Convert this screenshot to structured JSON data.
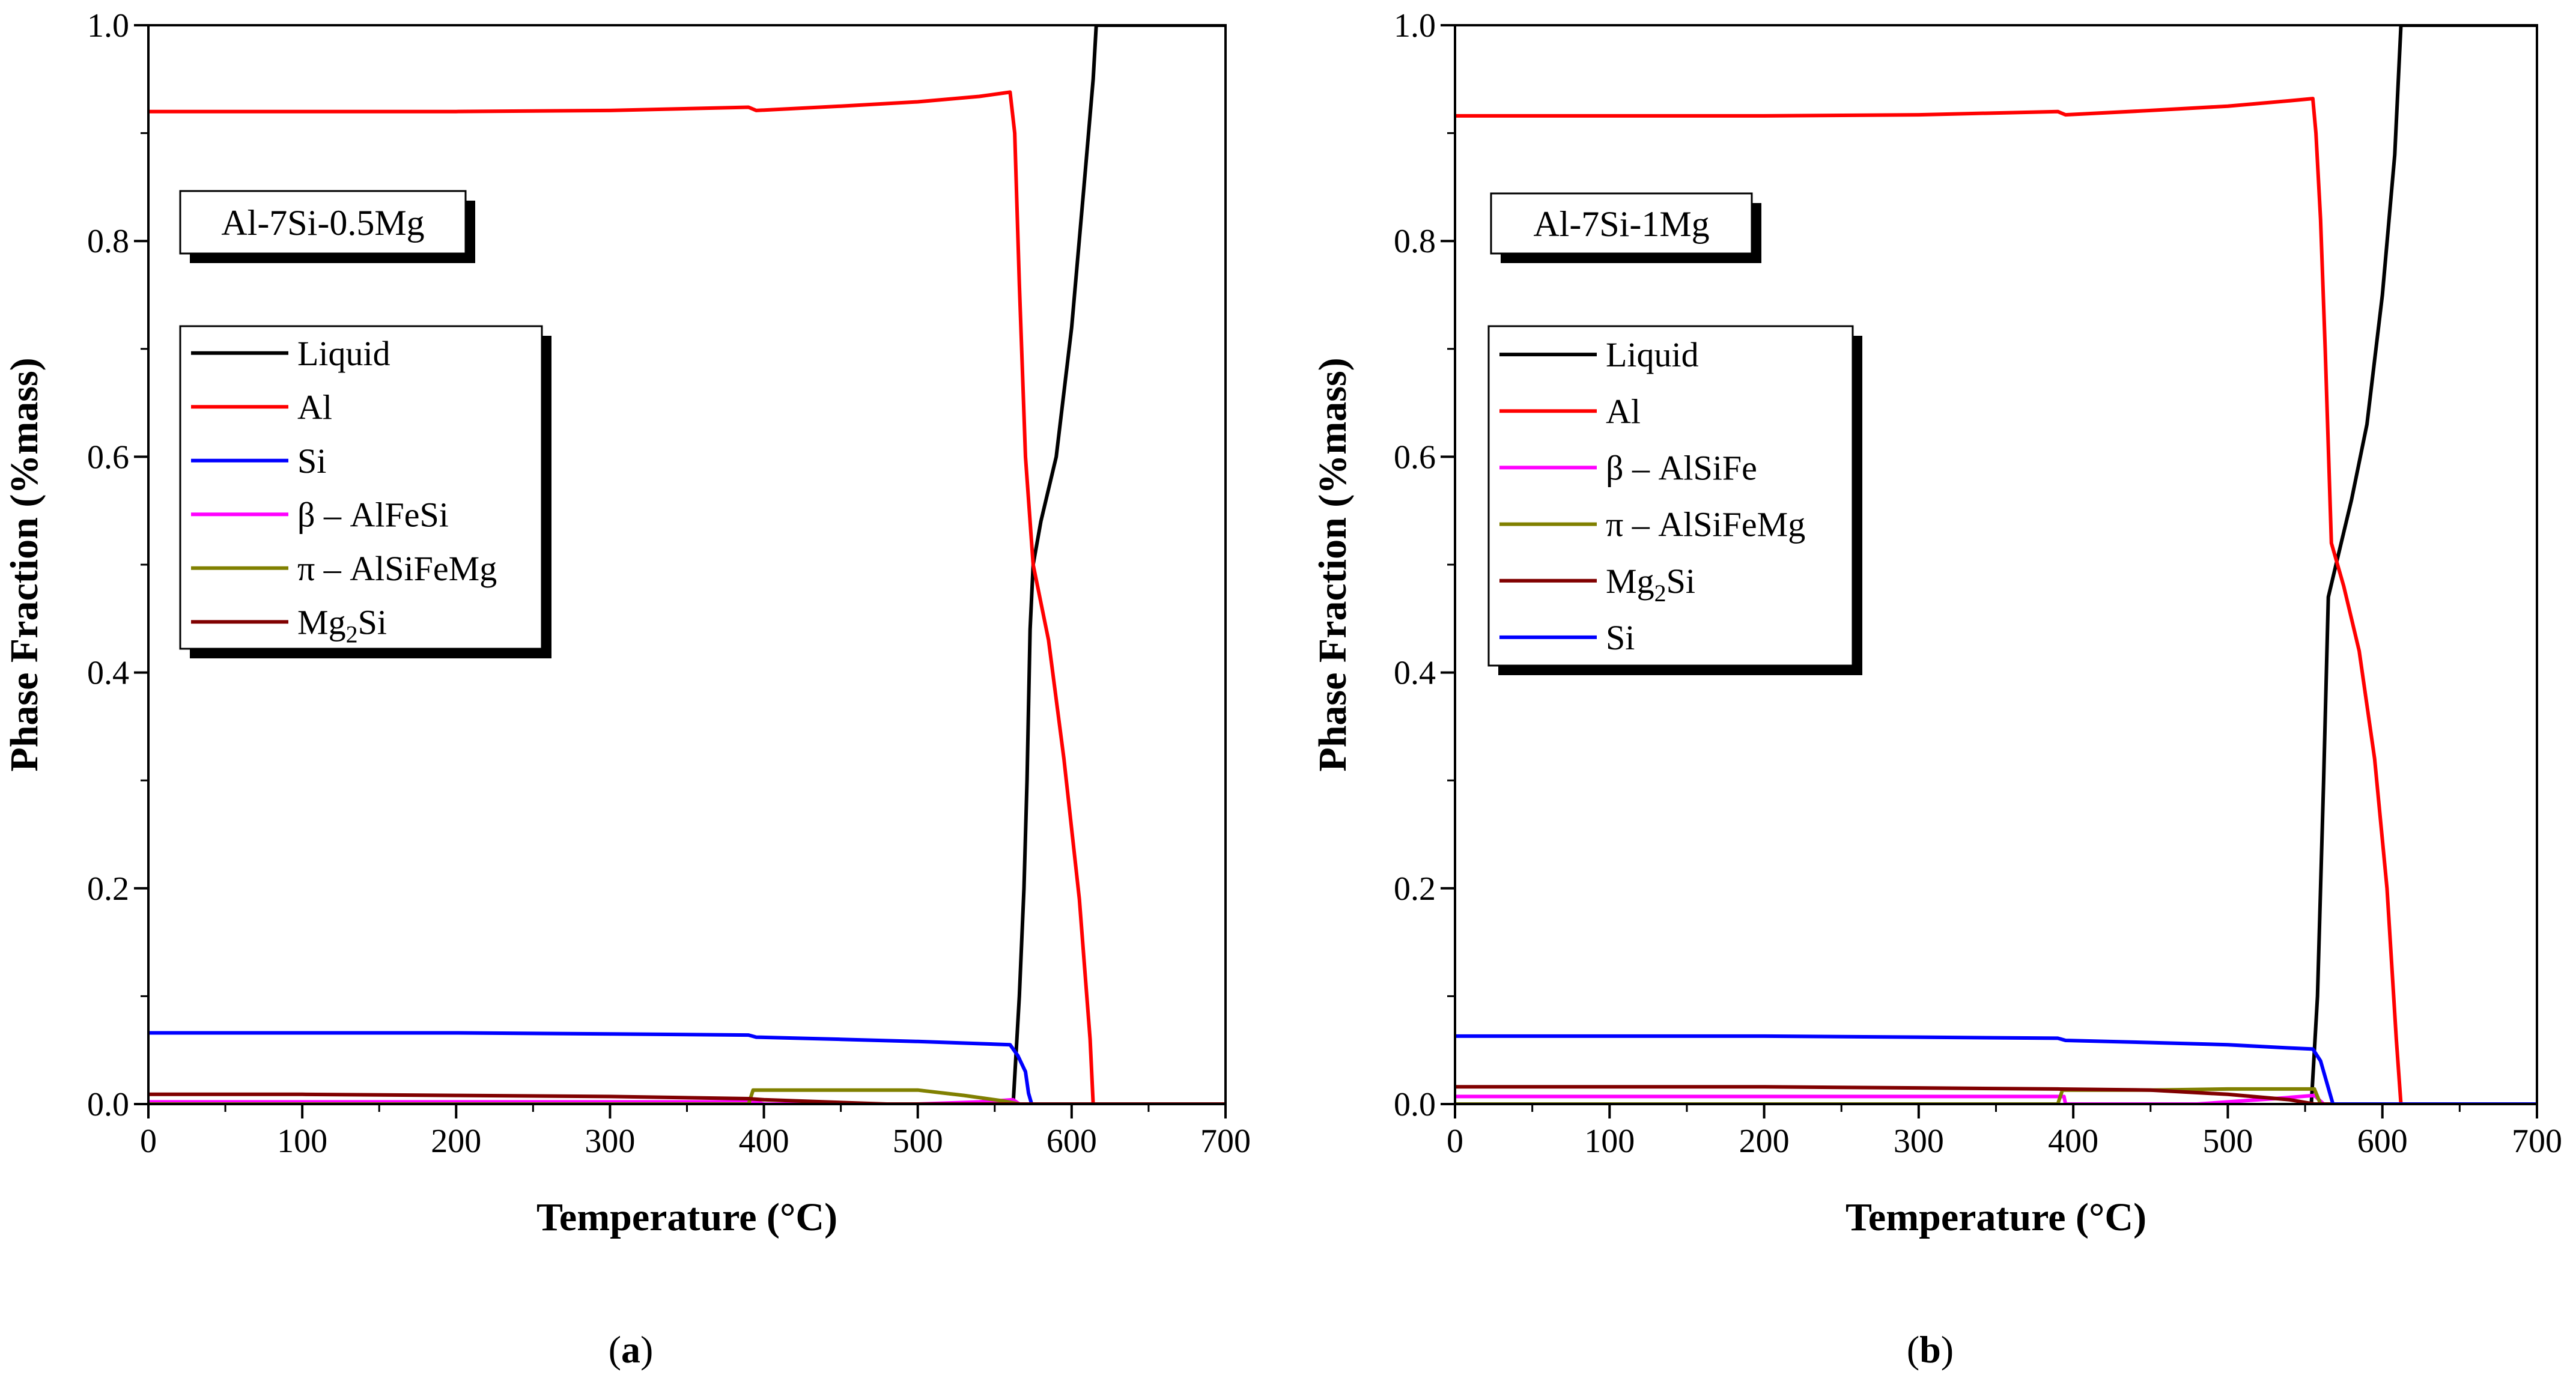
{
  "chart_data": [
    {
      "type": "line",
      "panel": "a",
      "caption": "a",
      "alloy_label": "Al-7Si-0.5Mg",
      "xlabel": "Temperature (°C)",
      "ylabel": "Phase Fraction (%mass)",
      "xlim": [
        0,
        700
      ],
      "ylim": [
        0,
        1.0
      ],
      "xticks": [
        0,
        100,
        200,
        300,
        400,
        500,
        600,
        700
      ],
      "xtick_labels": [
        "0",
        "100",
        "200",
        "300",
        "400",
        "500",
        "600",
        "700"
      ],
      "yticks": [
        0,
        0.2,
        0.4,
        0.6,
        0.8,
        1.0
      ],
      "ytick_labels": [
        "0.0",
        "0.2",
        "0.4",
        "0.6",
        "0.8",
        "1.0"
      ],
      "legend_location": "upper-left",
      "series": [
        {
          "name": "Liquid",
          "label_main": "Liquid",
          "label_sub": "",
          "label_tail": "",
          "color": "#000000",
          "points": [
            [
              562,
              0
            ],
            [
              566,
              0.1
            ],
            [
              569,
              0.2
            ],
            [
              571,
              0.3
            ],
            [
              573,
              0.44
            ],
            [
              575,
              0.5
            ],
            [
              580,
              0.54
            ],
            [
              590,
              0.6
            ],
            [
              600,
              0.72
            ],
            [
              608,
              0.85
            ],
            [
              614,
              0.95
            ],
            [
              616,
              1.0
            ],
            [
              700,
              1.0
            ]
          ]
        },
        {
          "name": "Al",
          "label_main": "Al",
          "label_sub": "",
          "label_tail": "",
          "color": "#ff0000",
          "points": [
            [
              0,
              0.92
            ],
            [
              100,
              0.92
            ],
            [
              200,
              0.92
            ],
            [
              300,
              0.921
            ],
            [
              390,
              0.924
            ],
            [
              395,
              0.921
            ],
            [
              450,
              0.925
            ],
            [
              500,
              0.929
            ],
            [
              540,
              0.934
            ],
            [
              560,
              0.938
            ],
            [
              563,
              0.9
            ],
            [
              566,
              0.76
            ],
            [
              570,
              0.6
            ],
            [
              575,
              0.5
            ],
            [
              585,
              0.43
            ],
            [
              595,
              0.32
            ],
            [
              605,
              0.19
            ],
            [
              612,
              0.06
            ],
            [
              614,
              0.0
            ],
            [
              700,
              0.0
            ]
          ]
        },
        {
          "name": "Si",
          "label_main": "Si",
          "label_sub": "",
          "label_tail": "",
          "color": "#0000ff",
          "points": [
            [
              0,
              0.066
            ],
            [
              100,
              0.066
            ],
            [
              200,
              0.066
            ],
            [
              300,
              0.065
            ],
            [
              390,
              0.064
            ],
            [
              395,
              0.062
            ],
            [
              450,
              0.06
            ],
            [
              500,
              0.058
            ],
            [
              540,
              0.056
            ],
            [
              560,
              0.055
            ],
            [
              565,
              0.045
            ],
            [
              570,
              0.03
            ],
            [
              572,
              0.01
            ],
            [
              574,
              0.0
            ],
            [
              700,
              0.0
            ]
          ]
        },
        {
          "name": "β – AlFeSi",
          "label_main": "β – AlFeSi",
          "label_sub": "",
          "label_tail": "",
          "color": "#ff00ff",
          "points": [
            [
              0,
              0.002
            ],
            [
              300,
              0.002
            ],
            [
              395,
              0.002
            ],
            [
              400,
              0.0
            ],
            [
              470,
              0.0
            ],
            [
              500,
              0.0
            ],
            [
              540,
              0.002
            ],
            [
              562,
              0.004
            ],
            [
              566,
              0.0
            ],
            [
              700,
              0.0
            ]
          ]
        },
        {
          "name": "π – AlSiFeMg",
          "label_main": "π – AlSiFeMg",
          "label_sub": "",
          "label_tail": "",
          "color": "#808000",
          "points": [
            [
              0,
              0.0
            ],
            [
              390,
              0.0
            ],
            [
              393,
              0.013
            ],
            [
              450,
              0.013
            ],
            [
              500,
              0.013
            ],
            [
              530,
              0.008
            ],
            [
              555,
              0.003
            ],
            [
              566,
              0.0
            ],
            [
              700,
              0.0
            ]
          ]
        },
        {
          "name": "Mg2Si",
          "label_main": "Mg",
          "label_sub": "2",
          "label_tail": "Si",
          "color": "#800000",
          "points": [
            [
              0,
              0.009
            ],
            [
              100,
              0.009
            ],
            [
              200,
              0.008
            ],
            [
              300,
              0.007
            ],
            [
              390,
              0.005
            ],
            [
              400,
              0.004
            ],
            [
              460,
              0.001
            ],
            [
              480,
              0.0
            ],
            [
              700,
              0.0
            ]
          ]
        }
      ]
    },
    {
      "type": "line",
      "panel": "b",
      "caption": "b",
      "alloy_label": "Al-7Si-1Mg",
      "xlabel": "Temperature (°C)",
      "ylabel": "Phase Fraction (%mass)",
      "xlim": [
        0,
        700
      ],
      "ylim": [
        0,
        1.0
      ],
      "xticks": [
        0,
        100,
        200,
        300,
        400,
        500,
        600,
        700
      ],
      "xtick_labels": [
        "0",
        "100",
        "200",
        "300",
        "400",
        "500",
        "600",
        "700"
      ],
      "yticks": [
        0,
        0.2,
        0.4,
        0.6,
        0.8,
        1.0
      ],
      "ytick_labels": [
        "0.0",
        "0.2",
        "0.4",
        "0.6",
        "0.8",
        "1.0"
      ],
      "legend_location": "upper-left",
      "series": [
        {
          "name": "Liquid",
          "label_main": "Liquid",
          "label_sub": "",
          "label_tail": "",
          "color": "#000000",
          "points": [
            [
              554,
              0
            ],
            [
              558,
              0.1
            ],
            [
              562,
              0.3
            ],
            [
              565,
              0.47
            ],
            [
              570,
              0.5
            ],
            [
              580,
              0.56
            ],
            [
              590,
              0.63
            ],
            [
              600,
              0.75
            ],
            [
              608,
              0.88
            ],
            [
              612,
              1.0
            ],
            [
              700,
              1.0
            ]
          ]
        },
        {
          "name": "Al",
          "label_main": "Al",
          "label_sub": "",
          "label_tail": "",
          "color": "#ff0000",
          "points": [
            [
              0,
              0.916
            ],
            [
              100,
              0.916
            ],
            [
              200,
              0.916
            ],
            [
              300,
              0.917
            ],
            [
              390,
              0.92
            ],
            [
              395,
              0.917
            ],
            [
              450,
              0.921
            ],
            [
              500,
              0.925
            ],
            [
              540,
              0.93
            ],
            [
              555,
              0.932
            ],
            [
              557,
              0.9
            ],
            [
              560,
              0.82
            ],
            [
              563,
              0.7
            ],
            [
              567,
              0.52
            ],
            [
              575,
              0.48
            ],
            [
              585,
              0.42
            ],
            [
              595,
              0.32
            ],
            [
              603,
              0.2
            ],
            [
              609,
              0.06
            ],
            [
              612,
              0.0
            ],
            [
              700,
              0.0
            ]
          ]
        },
        {
          "name": "β – AlSiFe",
          "label_main": "β – AlSiFe",
          "label_sub": "",
          "label_tail": "",
          "color": "#ff00ff",
          "points": [
            [
              0,
              0.007
            ],
            [
              100,
              0.007
            ],
            [
              200,
              0.007
            ],
            [
              300,
              0.007
            ],
            [
              394,
              0.007
            ],
            [
              395,
              0.0
            ],
            [
              430,
              0.0
            ],
            [
              480,
              0.0
            ],
            [
              530,
              0.005
            ],
            [
              556,
              0.008
            ],
            [
              562,
              0.0
            ],
            [
              700,
              0.0
            ]
          ]
        },
        {
          "name": "π – AlSiFeMg",
          "label_main": "π – AlSiFeMg",
          "label_sub": "",
          "label_tail": "",
          "color": "#808000",
          "points": [
            [
              0,
              0.0
            ],
            [
              390,
              0.0
            ],
            [
              393,
              0.013
            ],
            [
              450,
              0.013
            ],
            [
              500,
              0.014
            ],
            [
              540,
              0.014
            ],
            [
              556,
              0.014
            ],
            [
              560,
              0.0
            ],
            [
              700,
              0.0
            ]
          ]
        },
        {
          "name": "Mg2Si",
          "label_main": "Mg",
          "label_sub": "2",
          "label_tail": "Si",
          "color": "#800000",
          "points": [
            [
              0,
              0.016
            ],
            [
              100,
              0.016
            ],
            [
              200,
              0.016
            ],
            [
              300,
              0.015
            ],
            [
              390,
              0.014
            ],
            [
              450,
              0.013
            ],
            [
              500,
              0.009
            ],
            [
              540,
              0.004
            ],
            [
              556,
              0.0
            ],
            [
              700,
              0.0
            ]
          ]
        },
        {
          "name": "Si",
          "label_main": "Si",
          "label_sub": "",
          "label_tail": "",
          "color": "#0000ff",
          "points": [
            [
              0,
              0.063
            ],
            [
              100,
              0.063
            ],
            [
              200,
              0.063
            ],
            [
              300,
              0.062
            ],
            [
              390,
              0.061
            ],
            [
              395,
              0.059
            ],
            [
              450,
              0.057
            ],
            [
              500,
              0.055
            ],
            [
              540,
              0.052
            ],
            [
              555,
              0.051
            ],
            [
              560,
              0.04
            ],
            [
              565,
              0.015
            ],
            [
              568,
              0.0
            ],
            [
              700,
              0.0
            ]
          ]
        }
      ]
    }
  ]
}
